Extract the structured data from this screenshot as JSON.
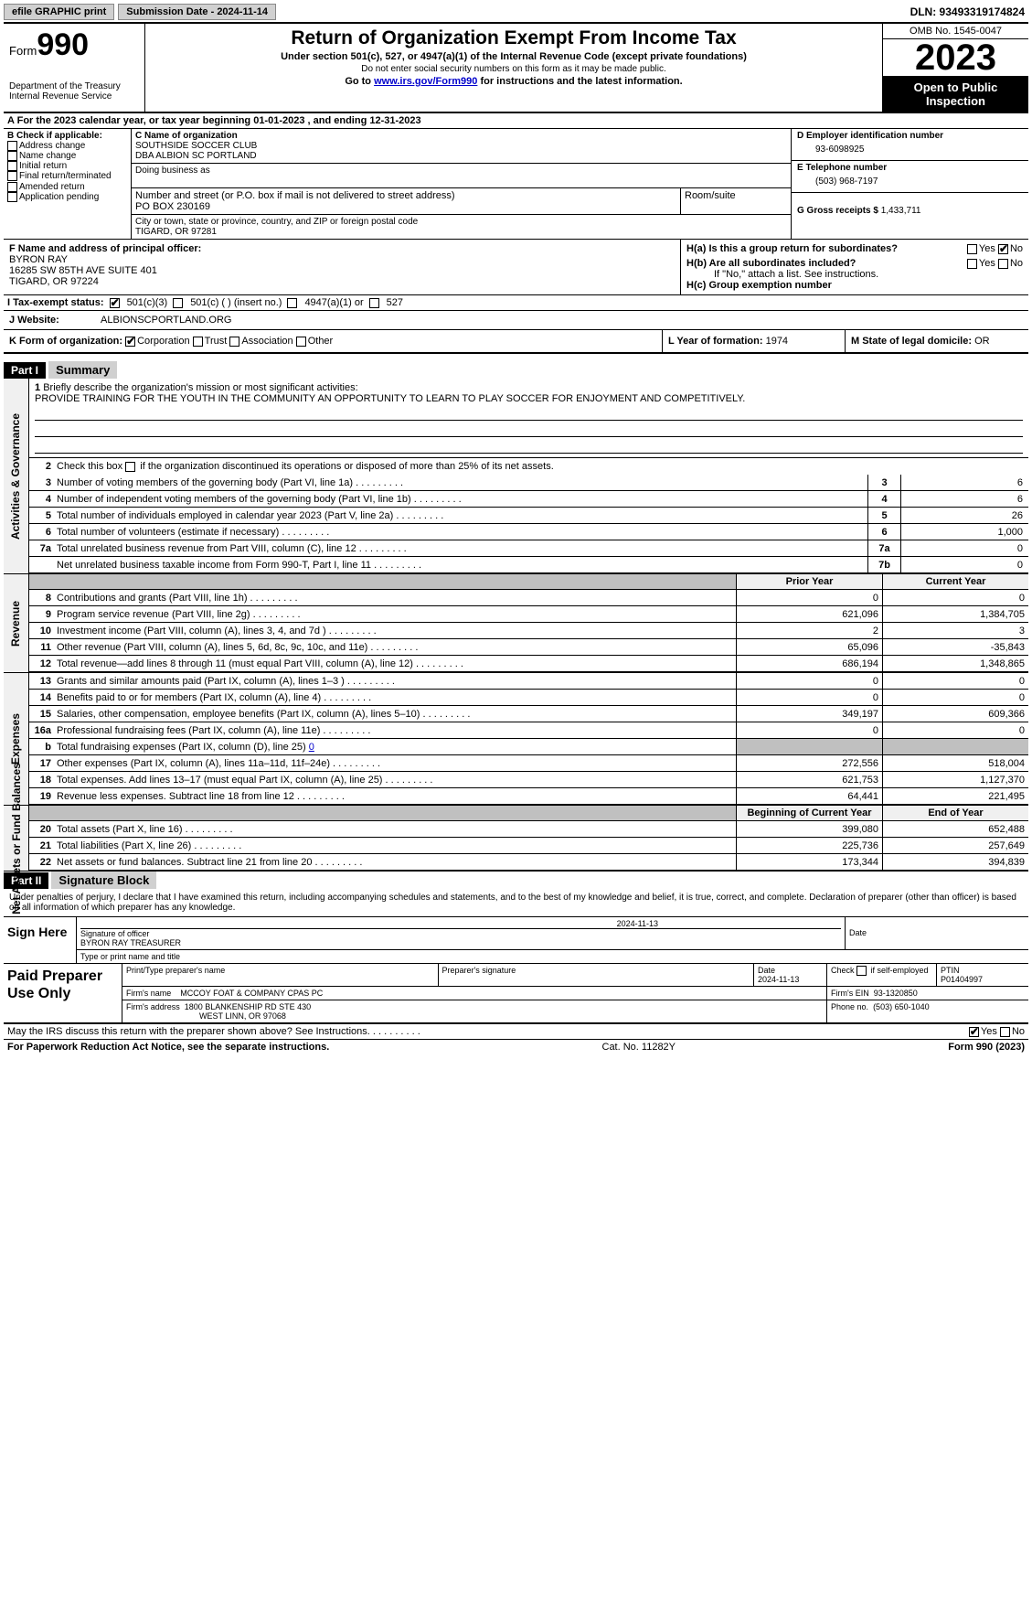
{
  "top": {
    "efile": "efile GRAPHIC print",
    "submission": "Submission Date - 2024-11-14",
    "dln": "DLN: 93493319174824"
  },
  "header": {
    "form_prefix": "Form",
    "form_num": "990",
    "dept": "Department of the Treasury",
    "irs": "Internal Revenue Service",
    "title": "Return of Organization Exempt From Income Tax",
    "sub1": "Under section 501(c), 527, or 4947(a)(1) of the Internal Revenue Code (except private foundations)",
    "sub2": "Do not enter social security numbers on this form as it may be made public.",
    "sub3_prefix": "Go to ",
    "sub3_link": "www.irs.gov/Form990",
    "sub3_suffix": " for instructions and the latest information.",
    "omb": "OMB No. 1545-0047",
    "year": "2023",
    "open": "Open to Public Inspection"
  },
  "lineA": "For the 2023 calendar year, or tax year beginning 01-01-2023   , and ending 12-31-2023",
  "checkB": {
    "header": "B Check if applicable:",
    "items": [
      "Address change",
      "Name change",
      "Initial return",
      "Final return/terminated",
      "Amended return",
      "Application pending"
    ]
  },
  "colC": {
    "name_label": "C Name of organization",
    "name1": "SOUTHSIDE SOCCER CLUB",
    "name2": "DBA ALBION SC PORTLAND",
    "dba_label": "Doing business as",
    "addr_label": "Number and street (or P.O. box if mail is not delivered to street address)",
    "room_label": "Room/suite",
    "addr": "PO BOX 230169",
    "city_label": "City or town, state or province, country, and ZIP or foreign postal code",
    "city": "TIGARD, OR  97281"
  },
  "colD": {
    "ein_label": "D Employer identification number",
    "ein": "93-6098925",
    "phone_label": "E Telephone number",
    "phone": "(503) 968-7197",
    "gross_label": "G Gross receipts $",
    "gross": "1,433,711"
  },
  "rowF": {
    "label": "F  Name and address of principal officer:",
    "name": "BYRON RAY",
    "addr1": "16285 SW 85TH AVE SUITE 401",
    "addr2": "TIGARD, OR  97224"
  },
  "rowH": {
    "ha": "H(a)  Is this a group return for subordinates?",
    "hb": "H(b)  Are all subordinates included?",
    "hb_note": "If \"No,\" attach a list. See instructions.",
    "hc": "H(c)  Group exemption number",
    "yes": "Yes",
    "no": "No"
  },
  "taxExempt": {
    "label": "I    Tax-exempt status:",
    "opt1": "501(c)(3)",
    "opt2": "501(c) (  ) (insert no.)",
    "opt3": "4947(a)(1) or",
    "opt4": "527"
  },
  "website": {
    "label": "J   Website:",
    "value": "ALBIONSCPORTLAND.ORG"
  },
  "rowK": {
    "label": "K Form of organization:",
    "corp": "Corporation",
    "trust": "Trust",
    "assoc": "Association",
    "other": "Other"
  },
  "rowL": {
    "label": "L Year of formation:",
    "value": "1974"
  },
  "rowM": {
    "label": "M State of legal domicile:",
    "value": "OR"
  },
  "part1": {
    "header": "Part I",
    "title": "Summary",
    "side1": "Activities & Governance",
    "side2": "Revenue",
    "side3": "Expenses",
    "side4": "Net Assets or Fund Balances",
    "line1_label": "Briefly describe the organization's mission or most significant activities:",
    "line1_text": "PROVIDE TRAINING FOR THE YOUTH IN THE COMMUNITY AN OPPORTUNITY TO LEARN TO PLAY SOCCER FOR ENJOYMENT AND COMPETITIVELY.",
    "line2": "Check this box      if the organization discontinued its operations or disposed of more than 25% of its net assets.",
    "lines_gov": [
      {
        "n": "3",
        "d": "Number of voting members of the governing body (Part VI, line 1a)",
        "bn": "3",
        "v": "6"
      },
      {
        "n": "4",
        "d": "Number of independent voting members of the governing body (Part VI, line 1b)",
        "bn": "4",
        "v": "6"
      },
      {
        "n": "5",
        "d": "Total number of individuals employed in calendar year 2023 (Part V, line 2a)",
        "bn": "5",
        "v": "26"
      },
      {
        "n": "6",
        "d": "Total number of volunteers (estimate if necessary)",
        "bn": "6",
        "v": "1,000"
      },
      {
        "n": "7a",
        "d": "Total unrelated business revenue from Part VIII, column (C), line 12",
        "bn": "7a",
        "v": "0"
      },
      {
        "n": "",
        "d": "Net unrelated business taxable income from Form 990-T, Part I, line 11",
        "bn": "7b",
        "v": "0"
      }
    ],
    "col_prior": "Prior Year",
    "col_curr": "Current Year",
    "lines_rev": [
      {
        "n": "8",
        "d": "Contributions and grants (Part VIII, line 1h)",
        "p": "0",
        "c": "0"
      },
      {
        "n": "9",
        "d": "Program service revenue (Part VIII, line 2g)",
        "p": "621,096",
        "c": "1,384,705"
      },
      {
        "n": "10",
        "d": "Investment income (Part VIII, column (A), lines 3, 4, and 7d )",
        "p": "2",
        "c": "3"
      },
      {
        "n": "11",
        "d": "Other revenue (Part VIII, column (A), lines 5, 6d, 8c, 9c, 10c, and 11e)",
        "p": "65,096",
        "c": "-35,843"
      },
      {
        "n": "12",
        "d": "Total revenue—add lines 8 through 11 (must equal Part VIII, column (A), line 12)",
        "p": "686,194",
        "c": "1,348,865"
      }
    ],
    "lines_exp": [
      {
        "n": "13",
        "d": "Grants and similar amounts paid (Part IX, column (A), lines 1–3 )",
        "p": "0",
        "c": "0"
      },
      {
        "n": "14",
        "d": "Benefits paid to or for members (Part IX, column (A), line 4)",
        "p": "0",
        "c": "0"
      },
      {
        "n": "15",
        "d": "Salaries, other compensation, employee benefits (Part IX, column (A), lines 5–10)",
        "p": "349,197",
        "c": "609,366"
      },
      {
        "n": "16a",
        "d": "Professional fundraising fees (Part IX, column (A), line 11e)",
        "p": "0",
        "c": "0"
      }
    ],
    "line16b": {
      "n": "b",
      "d": "Total fundraising expenses (Part IX, column (D), line 25)",
      "v": "0"
    },
    "lines_exp2": [
      {
        "n": "17",
        "d": "Other expenses (Part IX, column (A), lines 11a–11d, 11f–24e)",
        "p": "272,556",
        "c": "518,004"
      },
      {
        "n": "18",
        "d": "Total expenses. Add lines 13–17 (must equal Part IX, column (A), line 25)",
        "p": "621,753",
        "c": "1,127,370"
      },
      {
        "n": "19",
        "d": "Revenue less expenses. Subtract line 18 from line 12",
        "p": "64,441",
        "c": "221,495"
      }
    ],
    "col_beg": "Beginning of Current Year",
    "col_end": "End of Year",
    "lines_net": [
      {
        "n": "20",
        "d": "Total assets (Part X, line 16)",
        "p": "399,080",
        "c": "652,488"
      },
      {
        "n": "21",
        "d": "Total liabilities (Part X, line 26)",
        "p": "225,736",
        "c": "257,649"
      },
      {
        "n": "22",
        "d": "Net assets or fund balances. Subtract line 21 from line 20",
        "p": "173,344",
        "c": "394,839"
      }
    ]
  },
  "part2": {
    "header": "Part II",
    "title": "Signature Block",
    "decl": "Under penalties of perjury, I declare that I have examined this return, including accompanying schedules and statements, and to the best of my knowledge and belief, it is true, correct, and complete. Declaration of preparer (other than officer) is based on all information of which preparer has any knowledge.",
    "sign_here": "Sign Here",
    "sig_officer": "Signature of officer",
    "sig_name": "BYRON RAY TREASURER",
    "sig_type": "Type or print name and title",
    "sig_date_label": "Date",
    "sig_date": "2024-11-13",
    "paid": "Paid Preparer Use Only",
    "prep_name_label": "Print/Type preparer's name",
    "prep_sig_label": "Preparer's signature",
    "prep_date_label": "Date",
    "prep_date": "2024-11-13",
    "prep_check": "Check       if self-employed",
    "ptin_label": "PTIN",
    "ptin": "P01404997",
    "firm_name_label": "Firm's name",
    "firm_name": "MCCOY FOAT & COMPANY CPAS PC",
    "firm_ein_label": "Firm's EIN",
    "firm_ein": "93-1320850",
    "firm_addr_label": "Firm's address",
    "firm_addr1": "1800 BLANKENSHIP RD STE 430",
    "firm_addr2": "WEST LINN, OR  97068",
    "firm_phone_label": "Phone no.",
    "firm_phone": "(503) 650-1040",
    "discuss": "May the IRS discuss this return with the preparer shown above? See Instructions.",
    "yes": "Yes",
    "no": "No"
  },
  "footer": {
    "left": "For Paperwork Reduction Act Notice, see the separate instructions.",
    "mid": "Cat. No. 11282Y",
    "right_prefix": "Form ",
    "right_form": "990",
    "right_suffix": " (2023)"
  }
}
